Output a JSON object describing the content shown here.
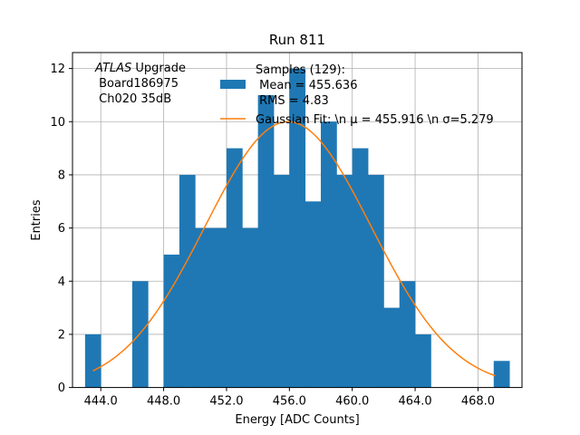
{
  "chart_data": {
    "type": "bar",
    "title": "Run 811",
    "xlabel": "Energy [ADC Counts]",
    "ylabel": "Entries",
    "xlim": [
      442.2,
      470.8
    ],
    "ylim": [
      0,
      12.6
    ],
    "xticks": [
      444.0,
      448.0,
      452.0,
      456.0,
      460.0,
      464.0,
      468.0
    ],
    "xtick_labels": [
      "444.0",
      "448.0",
      "452.0",
      "456.0",
      "460.0",
      "464.0",
      "468.0"
    ],
    "yticks": [
      0,
      2,
      4,
      6,
      8,
      10,
      12
    ],
    "ytick_labels": [
      "0",
      "2",
      "4",
      "6",
      "8",
      "10",
      "12"
    ],
    "grid": true,
    "bin_width": 1,
    "bin_starts": [
      443,
      444,
      445,
      446,
      447,
      448,
      449,
      450,
      451,
      452,
      453,
      454,
      455,
      456,
      457,
      458,
      459,
      460,
      461,
      462,
      463,
      464,
      465,
      466,
      467,
      468,
      469
    ],
    "counts": [
      2,
      0,
      0,
      4,
      0,
      5,
      8,
      6,
      6,
      9,
      6,
      11,
      8,
      12,
      7,
      10,
      8,
      9,
      8,
      3,
      4,
      2,
      0,
      0,
      0,
      0,
      1
    ],
    "bar_color": "#1f77b4",
    "fit": {
      "mu": 455.916,
      "sigma": 5.279,
      "amplitude": 10.0,
      "x_range": [
        443.5,
        469.1
      ],
      "color": "#ff7f0e"
    },
    "annotation_lines": [
      {
        "italic": "ATLAS",
        "text": " Upgrade"
      },
      {
        "italic": "",
        "text": " Board186975"
      },
      {
        "italic": "",
        "text": " Ch020 35dB"
      }
    ],
    "legend": {
      "placement": "top-right",
      "entries": [
        {
          "type": "patch",
          "lines": [
            "Samples (129):",
            " Mean = 455.636",
            " RMS = 4.83"
          ]
        },
        {
          "type": "line",
          "lines": [
            "Gaussian Fit: \\n μ = 455.916 \\n σ=5.279"
          ]
        }
      ]
    }
  }
}
